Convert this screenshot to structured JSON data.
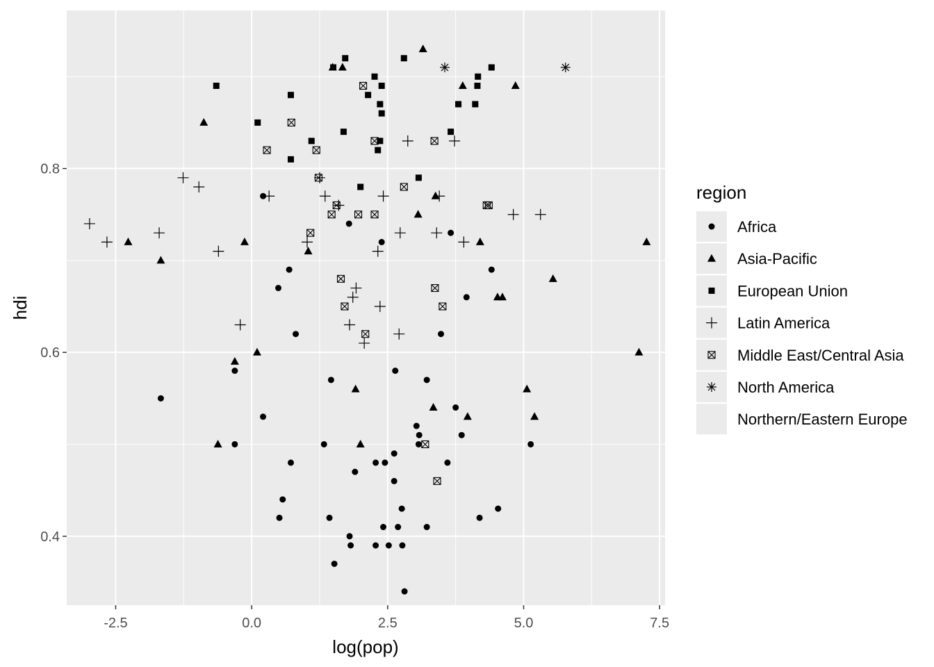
{
  "chart_data": {
    "type": "scatter",
    "xlabel": "log(pop)",
    "ylabel": "hdi",
    "xlim": [
      -3.4,
      7.6
    ],
    "ylim": [
      0.325,
      0.972
    ],
    "x_ticks": [
      -2.5,
      0.0,
      2.5,
      5.0,
      7.5
    ],
    "x_tick_labels": [
      "-2.5",
      "0.0",
      "2.5",
      "5.0",
      "7.5"
    ],
    "y_ticks": [
      0.4,
      0.6,
      0.8
    ],
    "y_tick_labels": [
      "0.4",
      "0.6",
      "0.8"
    ],
    "grid": true,
    "background": "#ebebeb",
    "gridline_color": "#ffffff",
    "legend": {
      "title": "region",
      "position": "right",
      "entries": [
        {
          "label": "Africa",
          "shape": "circle"
        },
        {
          "label": "Asia-Pacific",
          "shape": "triangle"
        },
        {
          "label": "European Union",
          "shape": "square"
        },
        {
          "label": "Latin America",
          "shape": "plus"
        },
        {
          "label": "Middle East/Central Asia",
          "shape": "square-cross"
        },
        {
          "label": "North America",
          "shape": "asterisk"
        },
        {
          "label": "Northern/Eastern Europe",
          "shape": "none"
        }
      ]
    },
    "series": [
      {
        "name": "Africa",
        "shape": "circle",
        "points": [
          [
            -1.67,
            0.55
          ],
          [
            -0.31,
            0.58
          ],
          [
            -0.31,
            0.5
          ],
          [
            0.21,
            0.77
          ],
          [
            0.21,
            0.53
          ],
          [
            0.49,
            0.67
          ],
          [
            0.51,
            0.42
          ],
          [
            0.57,
            0.44
          ],
          [
            0.69,
            0.69
          ],
          [
            0.72,
            0.48
          ],
          [
            0.81,
            0.62
          ],
          [
            1.33,
            0.5
          ],
          [
            1.43,
            0.42
          ],
          [
            1.46,
            0.57
          ],
          [
            1.52,
            0.37
          ],
          [
            1.79,
            0.74
          ],
          [
            1.8,
            0.4
          ],
          [
            1.82,
            0.39
          ],
          [
            1.9,
            0.47
          ],
          [
            2.28,
            0.48
          ],
          [
            2.28,
            0.39
          ],
          [
            2.39,
            0.72
          ],
          [
            2.42,
            0.41
          ],
          [
            2.45,
            0.48
          ],
          [
            2.52,
            0.39
          ],
          [
            2.62,
            0.46
          ],
          [
            2.62,
            0.49
          ],
          [
            2.64,
            0.58
          ],
          [
            2.69,
            0.41
          ],
          [
            2.76,
            0.43
          ],
          [
            2.77,
            0.39
          ],
          [
            2.81,
            0.34
          ],
          [
            3.03,
            0.52
          ],
          [
            3.07,
            0.5
          ],
          [
            3.08,
            0.51
          ],
          [
            3.22,
            0.57
          ],
          [
            3.22,
            0.41
          ],
          [
            3.48,
            0.62
          ],
          [
            3.6,
            0.48
          ],
          [
            3.66,
            0.73
          ],
          [
            3.75,
            0.54
          ],
          [
            3.86,
            0.51
          ],
          [
            3.95,
            0.66
          ],
          [
            4.19,
            0.42
          ],
          [
            4.41,
            0.69
          ],
          [
            4.53,
            0.43
          ],
          [
            5.13,
            0.5
          ]
        ]
      },
      {
        "name": "Asia-Pacific",
        "shape": "triangle",
        "points": [
          [
            -2.27,
            0.72
          ],
          [
            -1.67,
            0.7
          ],
          [
            -0.88,
            0.85
          ],
          [
            -0.62,
            0.5
          ],
          [
            -0.31,
            0.59
          ],
          [
            -0.13,
            0.72
          ],
          [
            0.1,
            0.6
          ],
          [
            1.04,
            0.71
          ],
          [
            1.49,
            0.91
          ],
          [
            1.67,
            0.91
          ],
          [
            1.91,
            0.56
          ],
          [
            2.0,
            0.5
          ],
          [
            3.06,
            0.75
          ],
          [
            3.15,
            0.93
          ],
          [
            3.34,
            0.54
          ],
          [
            3.38,
            0.77
          ],
          [
            3.97,
            0.53
          ],
          [
            3.88,
            0.89
          ],
          [
            4.2,
            0.72
          ],
          [
            4.52,
            0.66
          ],
          [
            4.61,
            0.66
          ],
          [
            4.85,
            0.89
          ],
          [
            5.06,
            0.56
          ],
          [
            5.2,
            0.53
          ],
          [
            5.54,
            0.68
          ],
          [
            7.12,
            0.6
          ],
          [
            7.26,
            0.72
          ]
        ]
      },
      {
        "name": "European Union",
        "shape": "square",
        "points": [
          [
            -0.65,
            0.89
          ],
          [
            0.11,
            0.85
          ],
          [
            0.72,
            0.81
          ],
          [
            0.72,
            0.88
          ],
          [
            1.1,
            0.83
          ],
          [
            1.5,
            0.91
          ],
          [
            1.69,
            0.84
          ],
          [
            1.72,
            0.92
          ],
          [
            2.0,
            0.78
          ],
          [
            2.14,
            0.88
          ],
          [
            2.26,
            0.9
          ],
          [
            2.32,
            0.82
          ],
          [
            2.36,
            0.83
          ],
          [
            2.36,
            0.87
          ],
          [
            2.39,
            0.86
          ],
          [
            2.39,
            0.89
          ],
          [
            2.8,
            0.92
          ],
          [
            3.07,
            0.79
          ],
          [
            3.66,
            0.84
          ],
          [
            3.8,
            0.87
          ],
          [
            4.11,
            0.87
          ],
          [
            4.15,
            0.89
          ],
          [
            4.16,
            0.9
          ],
          [
            4.41,
            0.91
          ]
        ]
      },
      {
        "name": "Latin America",
        "shape": "plus",
        "points": [
          [
            -2.98,
            0.74
          ],
          [
            -2.66,
            0.72
          ],
          [
            -1.7,
            0.73
          ],
          [
            -1.26,
            0.79
          ],
          [
            -0.97,
            0.78
          ],
          [
            -0.61,
            0.71
          ],
          [
            -0.21,
            0.63
          ],
          [
            0.32,
            0.77
          ],
          [
            1.02,
            0.72
          ],
          [
            1.25,
            0.79
          ],
          [
            1.35,
            0.77
          ],
          [
            1.6,
            0.76
          ],
          [
            1.8,
            0.63
          ],
          [
            1.86,
            0.66
          ],
          [
            1.92,
            0.67
          ],
          [
            2.07,
            0.61
          ],
          [
            2.32,
            0.71
          ],
          [
            2.36,
            0.65
          ],
          [
            2.42,
            0.77
          ],
          [
            2.71,
            0.62
          ],
          [
            2.73,
            0.73
          ],
          [
            2.87,
            0.83
          ],
          [
            3.4,
            0.73
          ],
          [
            3.45,
            0.77
          ],
          [
            3.73,
            0.83
          ],
          [
            3.9,
            0.72
          ],
          [
            4.81,
            0.75
          ],
          [
            5.31,
            0.75
          ]
        ]
      },
      {
        "name": "Middle East/Central Asia",
        "shape": "square-cross",
        "points": [
          [
            0.28,
            0.82
          ],
          [
            0.73,
            0.85
          ],
          [
            1.08,
            0.73
          ],
          [
            1.19,
            0.82
          ],
          [
            1.23,
            0.79
          ],
          [
            1.47,
            0.75
          ],
          [
            1.56,
            0.76
          ],
          [
            1.64,
            0.68
          ],
          [
            1.71,
            0.65
          ],
          [
            1.96,
            0.75
          ],
          [
            2.05,
            0.89
          ],
          [
            2.09,
            0.62
          ],
          [
            2.26,
            0.75
          ],
          [
            2.26,
            0.83
          ],
          [
            2.8,
            0.78
          ],
          [
            3.19,
            0.5
          ],
          [
            3.36,
            0.83
          ],
          [
            3.37,
            0.67
          ],
          [
            3.41,
            0.46
          ],
          [
            3.51,
            0.65
          ],
          [
            4.32,
            0.76
          ],
          [
            4.36,
            0.76
          ]
        ]
      },
      {
        "name": "North America",
        "shape": "asterisk",
        "points": [
          [
            3.55,
            0.91
          ],
          [
            5.77,
            0.91
          ]
        ]
      },
      {
        "name": "Northern/Eastern Europe",
        "shape": "none",
        "points": []
      }
    ]
  }
}
